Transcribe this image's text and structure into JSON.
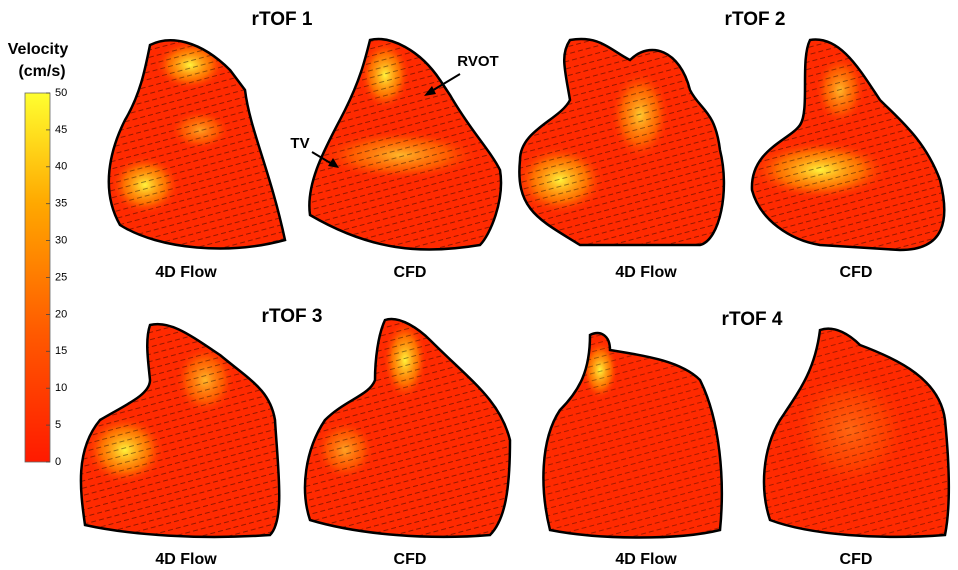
{
  "colorbar": {
    "title": [
      "Velocity",
      "(cm/s)"
    ],
    "lim": [
      0,
      50
    ],
    "ticks": [
      0,
      5,
      10,
      15,
      20,
      25,
      30,
      35,
      40,
      45,
      50
    ]
  },
  "panels": [
    {
      "title": "rTOF 1",
      "views": [
        "4D Flow",
        "CFD"
      ]
    },
    {
      "title": "rTOF 2",
      "views": [
        "4D Flow",
        "CFD"
      ]
    },
    {
      "title": "rTOF 3",
      "views": [
        "4D Flow",
        "CFD"
      ]
    },
    {
      "title": "rTOF 4",
      "views": [
        "4D Flow",
        "CFD"
      ]
    }
  ],
  "annotations": [
    "RVOT",
    "TV"
  ]
}
